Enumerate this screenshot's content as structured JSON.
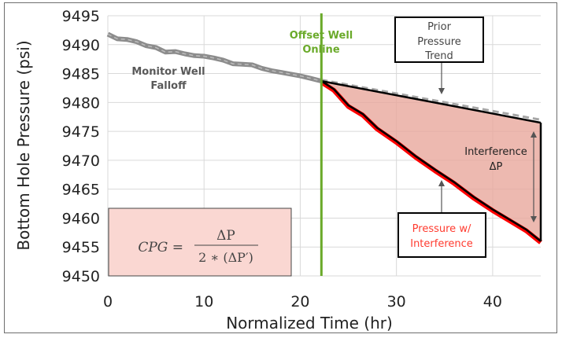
{
  "chart_data": {
    "type": "line",
    "title": "",
    "xlabel": "Normalized Time (hr)",
    "ylabel": "Bottom Hole Pressure (psi)",
    "xlim": [
      0,
      45
    ],
    "ylim": [
      9450,
      9495
    ],
    "xticks": [
      "0",
      "10",
      "20",
      "30",
      "40"
    ],
    "yticks": [
      "9450",
      "9455",
      "9460",
      "9465",
      "9470",
      "9475",
      "9480",
      "9485",
      "9490",
      "9495"
    ],
    "grid": true,
    "series": [
      {
        "label": "Monitor Well Falloff",
        "color": "#8c8c8c",
        "x": [
          0,
          1,
          2,
          3,
          4,
          5,
          6,
          7,
          8,
          9,
          10,
          11,
          12,
          13,
          14,
          15,
          16,
          17,
          18,
          19,
          20,
          21,
          22.2
        ],
        "y": [
          9491.8,
          9491,
          9490.9,
          9490.5,
          9489.8,
          9489.5,
          9488.7,
          9488.8,
          9488.4,
          9488.1,
          9488,
          9487.7,
          9487.3,
          9486.7,
          9486.6,
          9486.5,
          9485.9,
          9485.5,
          9485.2,
          9484.9,
          9484.6,
          9484.2,
          9483.7
        ]
      },
      {
        "label": "Pressure w/ Interference",
        "color": "#ff0000",
        "x": [
          22.2,
          23.5,
          25,
          26.5,
          28,
          30,
          32,
          34,
          36,
          38,
          40,
          42,
          43.5,
          45
        ],
        "y": [
          9483.7,
          9482.3,
          9479.5,
          9478,
          9475.6,
          9473.3,
          9470.7,
          9468.4,
          9466.2,
          9463.7,
          9461.5,
          9459.5,
          9458,
          9456
        ]
      },
      {
        "label": "Prior Pressure Trend",
        "color": "#000000",
        "x": [
          22.2,
          45
        ],
        "y": [
          9483.7,
          9476.5
        ]
      }
    ],
    "offset_line": {
      "x": 22.2,
      "color": "#6aaa2a",
      "label_line1": "Offset Well",
      "label_line2": "Online"
    },
    "annotations": {
      "falloff_line1": "Monitor Well",
      "falloff_line2": "Falloff",
      "prior_line1": "Prior",
      "prior_line2": "Pressure",
      "prior_line3": "Trend",
      "interference_line1": "Interference",
      "interference_line2": "ΔP",
      "pw_line1": "Pressure w/",
      "pw_line2": "Interference",
      "formula_lhs": "CPG =",
      "formula_num": "ΔP",
      "formula_den": "2 ∗ (ΔP′)"
    },
    "fill_color": "#e8a89c"
  }
}
